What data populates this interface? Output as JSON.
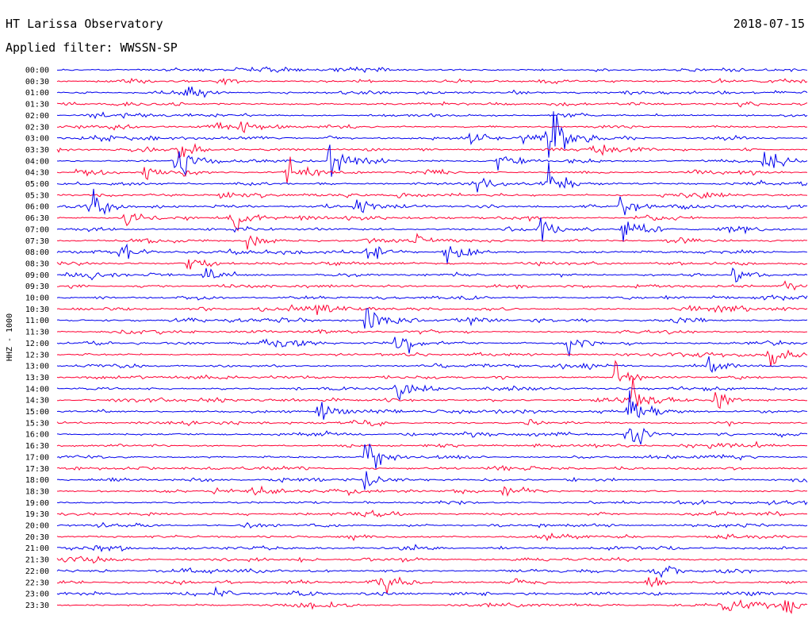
{
  "header": {
    "title": "HT Larissa Observatory",
    "date": "2018-07-15",
    "filter": "Applied filter: WWSSN-SP"
  },
  "colors": {
    "even_trace": "#0000ee",
    "odd_trace": "#ff0033"
  },
  "chart_data": {
    "type": "line",
    "title": "HT Larissa Observatory",
    "ylabel": "HHZ - 1000",
    "xlabel": "",
    "grid": false,
    "y_tick_labels": [
      "00:00",
      "00:30",
      "01:00",
      "01:30",
      "02:00",
      "02:30",
      "03:00",
      "03:30",
      "04:00",
      "04:30",
      "05:00",
      "05:30",
      "06:00",
      "06:30",
      "07:00",
      "07:30",
      "08:00",
      "08:30",
      "09:00",
      "09:30",
      "10:00",
      "10:30",
      "11:00",
      "11:30",
      "12:00",
      "12:30",
      "13:00",
      "13:30",
      "14:00",
      "14:30",
      "15:00",
      "15:30",
      "16:00",
      "16:30",
      "17:00",
      "17:30",
      "18:00",
      "18:30",
      "19:00",
      "19:30",
      "20:00",
      "20:30",
      "21:00",
      "21:30",
      "22:00",
      "22:30",
      "23:00",
      "23:30"
    ],
    "x_range_minutes": [
      0,
      30
    ],
    "events": [
      {
        "line": "00:30",
        "minute": 6.5,
        "amplitude": 0.6
      },
      {
        "line": "01:00",
        "minute": 5.2,
        "amplitude": 1.0
      },
      {
        "line": "01:30",
        "minute": 27.3,
        "amplitude": 0.5
      },
      {
        "line": "02:30",
        "minute": 7.3,
        "amplitude": 0.6
      },
      {
        "line": "03:00",
        "minute": 16.5,
        "amplitude": 1.2
      },
      {
        "line": "03:00",
        "minute": 18.6,
        "amplitude": 1.1
      },
      {
        "line": "03:00",
        "minute": 19.6,
        "amplitude": 8.0
      },
      {
        "line": "03:30",
        "minute": 4.7,
        "amplitude": 2.2
      },
      {
        "line": "03:30",
        "minute": 21.4,
        "amplitude": 0.8
      },
      {
        "line": "04:00",
        "minute": 4.7,
        "amplitude": 2.5
      },
      {
        "line": "04:00",
        "minute": 10.9,
        "amplitude": 3.0
      },
      {
        "line": "04:00",
        "minute": 17.6,
        "amplitude": 1.5
      },
      {
        "line": "04:00",
        "minute": 28.2,
        "amplitude": 2.3
      },
      {
        "line": "04:30",
        "minute": 0.8,
        "amplitude": 0.8
      },
      {
        "line": "04:30",
        "minute": 3.4,
        "amplitude": 1.2
      },
      {
        "line": "04:30",
        "minute": 9.1,
        "amplitude": 3.5
      },
      {
        "line": "05:00",
        "minute": 16.7,
        "amplitude": 1.2
      },
      {
        "line": "05:00",
        "minute": 19.6,
        "amplitude": 2.5
      },
      {
        "line": "05:30",
        "minute": 6.5,
        "amplitude": 1.0
      },
      {
        "line": "05:30",
        "minute": 13.5,
        "amplitude": 1.0
      },
      {
        "line": "06:00",
        "minute": 1.3,
        "amplitude": 2.2
      },
      {
        "line": "06:00",
        "minute": 11.9,
        "amplitude": 1.6
      },
      {
        "line": "06:00",
        "minute": 22.5,
        "amplitude": 1.6
      },
      {
        "line": "06:30",
        "minute": 2.7,
        "amplitude": 1.4
      },
      {
        "line": "06:30",
        "minute": 6.9,
        "amplitude": 2.2
      },
      {
        "line": "07:00",
        "minute": 19.2,
        "amplitude": 2.2
      },
      {
        "line": "07:00",
        "minute": 22.6,
        "amplitude": 2.3
      },
      {
        "line": "07:30",
        "minute": 7.6,
        "amplitude": 1.6
      },
      {
        "line": "07:30",
        "minute": 14.1,
        "amplitude": 1.6
      },
      {
        "line": "08:00",
        "minute": 2.5,
        "amplitude": 1.6
      },
      {
        "line": "08:00",
        "minute": 12.3,
        "amplitude": 1.6
      },
      {
        "line": "08:00",
        "minute": 15.5,
        "amplitude": 1.6
      },
      {
        "line": "08:30",
        "minute": 5.2,
        "amplitude": 1.2
      },
      {
        "line": "09:00",
        "minute": 5.9,
        "amplitude": 1.7
      },
      {
        "line": "09:00",
        "minute": 27.0,
        "amplitude": 1.4
      },
      {
        "line": "09:30",
        "minute": 29.1,
        "amplitude": 1.2
      },
      {
        "line": "10:30",
        "minute": 10.4,
        "amplitude": 1.4
      },
      {
        "line": "10:30",
        "minute": 26.3,
        "amplitude": 0.9
      },
      {
        "line": "11:00",
        "minute": 12.3,
        "amplitude": 2.5
      },
      {
        "line": "12:00",
        "minute": 13.6,
        "amplitude": 2.6
      },
      {
        "line": "12:00",
        "minute": 20.4,
        "amplitude": 1.6
      },
      {
        "line": "12:30",
        "minute": 28.5,
        "amplitude": 1.8
      },
      {
        "line": "13:00",
        "minute": 25.9,
        "amplitude": 1.4
      },
      {
        "line": "13:30",
        "minute": 22.3,
        "amplitude": 3.0
      },
      {
        "line": "14:00",
        "minute": 13.6,
        "amplitude": 1.8
      },
      {
        "line": "14:30",
        "minute": 23.0,
        "amplitude": 3.5
      },
      {
        "line": "14:30",
        "minute": 26.3,
        "amplitude": 1.2
      },
      {
        "line": "15:00",
        "minute": 10.4,
        "amplitude": 2.0
      },
      {
        "line": "15:00",
        "minute": 22.8,
        "amplitude": 3.5
      },
      {
        "line": "16:00",
        "minute": 22.8,
        "amplitude": 2.5
      },
      {
        "line": "17:00",
        "minute": 12.3,
        "amplitude": 3.0
      },
      {
        "line": "18:00",
        "minute": 12.3,
        "amplitude": 2.0
      },
      {
        "line": "18:30",
        "minute": 17.8,
        "amplitude": 1.4
      },
      {
        "line": "22:00",
        "minute": 24.0,
        "amplitude": 2.0
      },
      {
        "line": "22:30",
        "minute": 12.9,
        "amplitude": 1.4
      },
      {
        "line": "22:30",
        "minute": 23.6,
        "amplitude": 1.2
      },
      {
        "line": "23:00",
        "minute": 6.3,
        "amplitude": 1.0
      },
      {
        "line": "23:30",
        "minute": 26.6,
        "amplitude": 1.3
      },
      {
        "line": "23:30",
        "minute": 29.1,
        "amplitude": 2.0
      }
    ]
  }
}
